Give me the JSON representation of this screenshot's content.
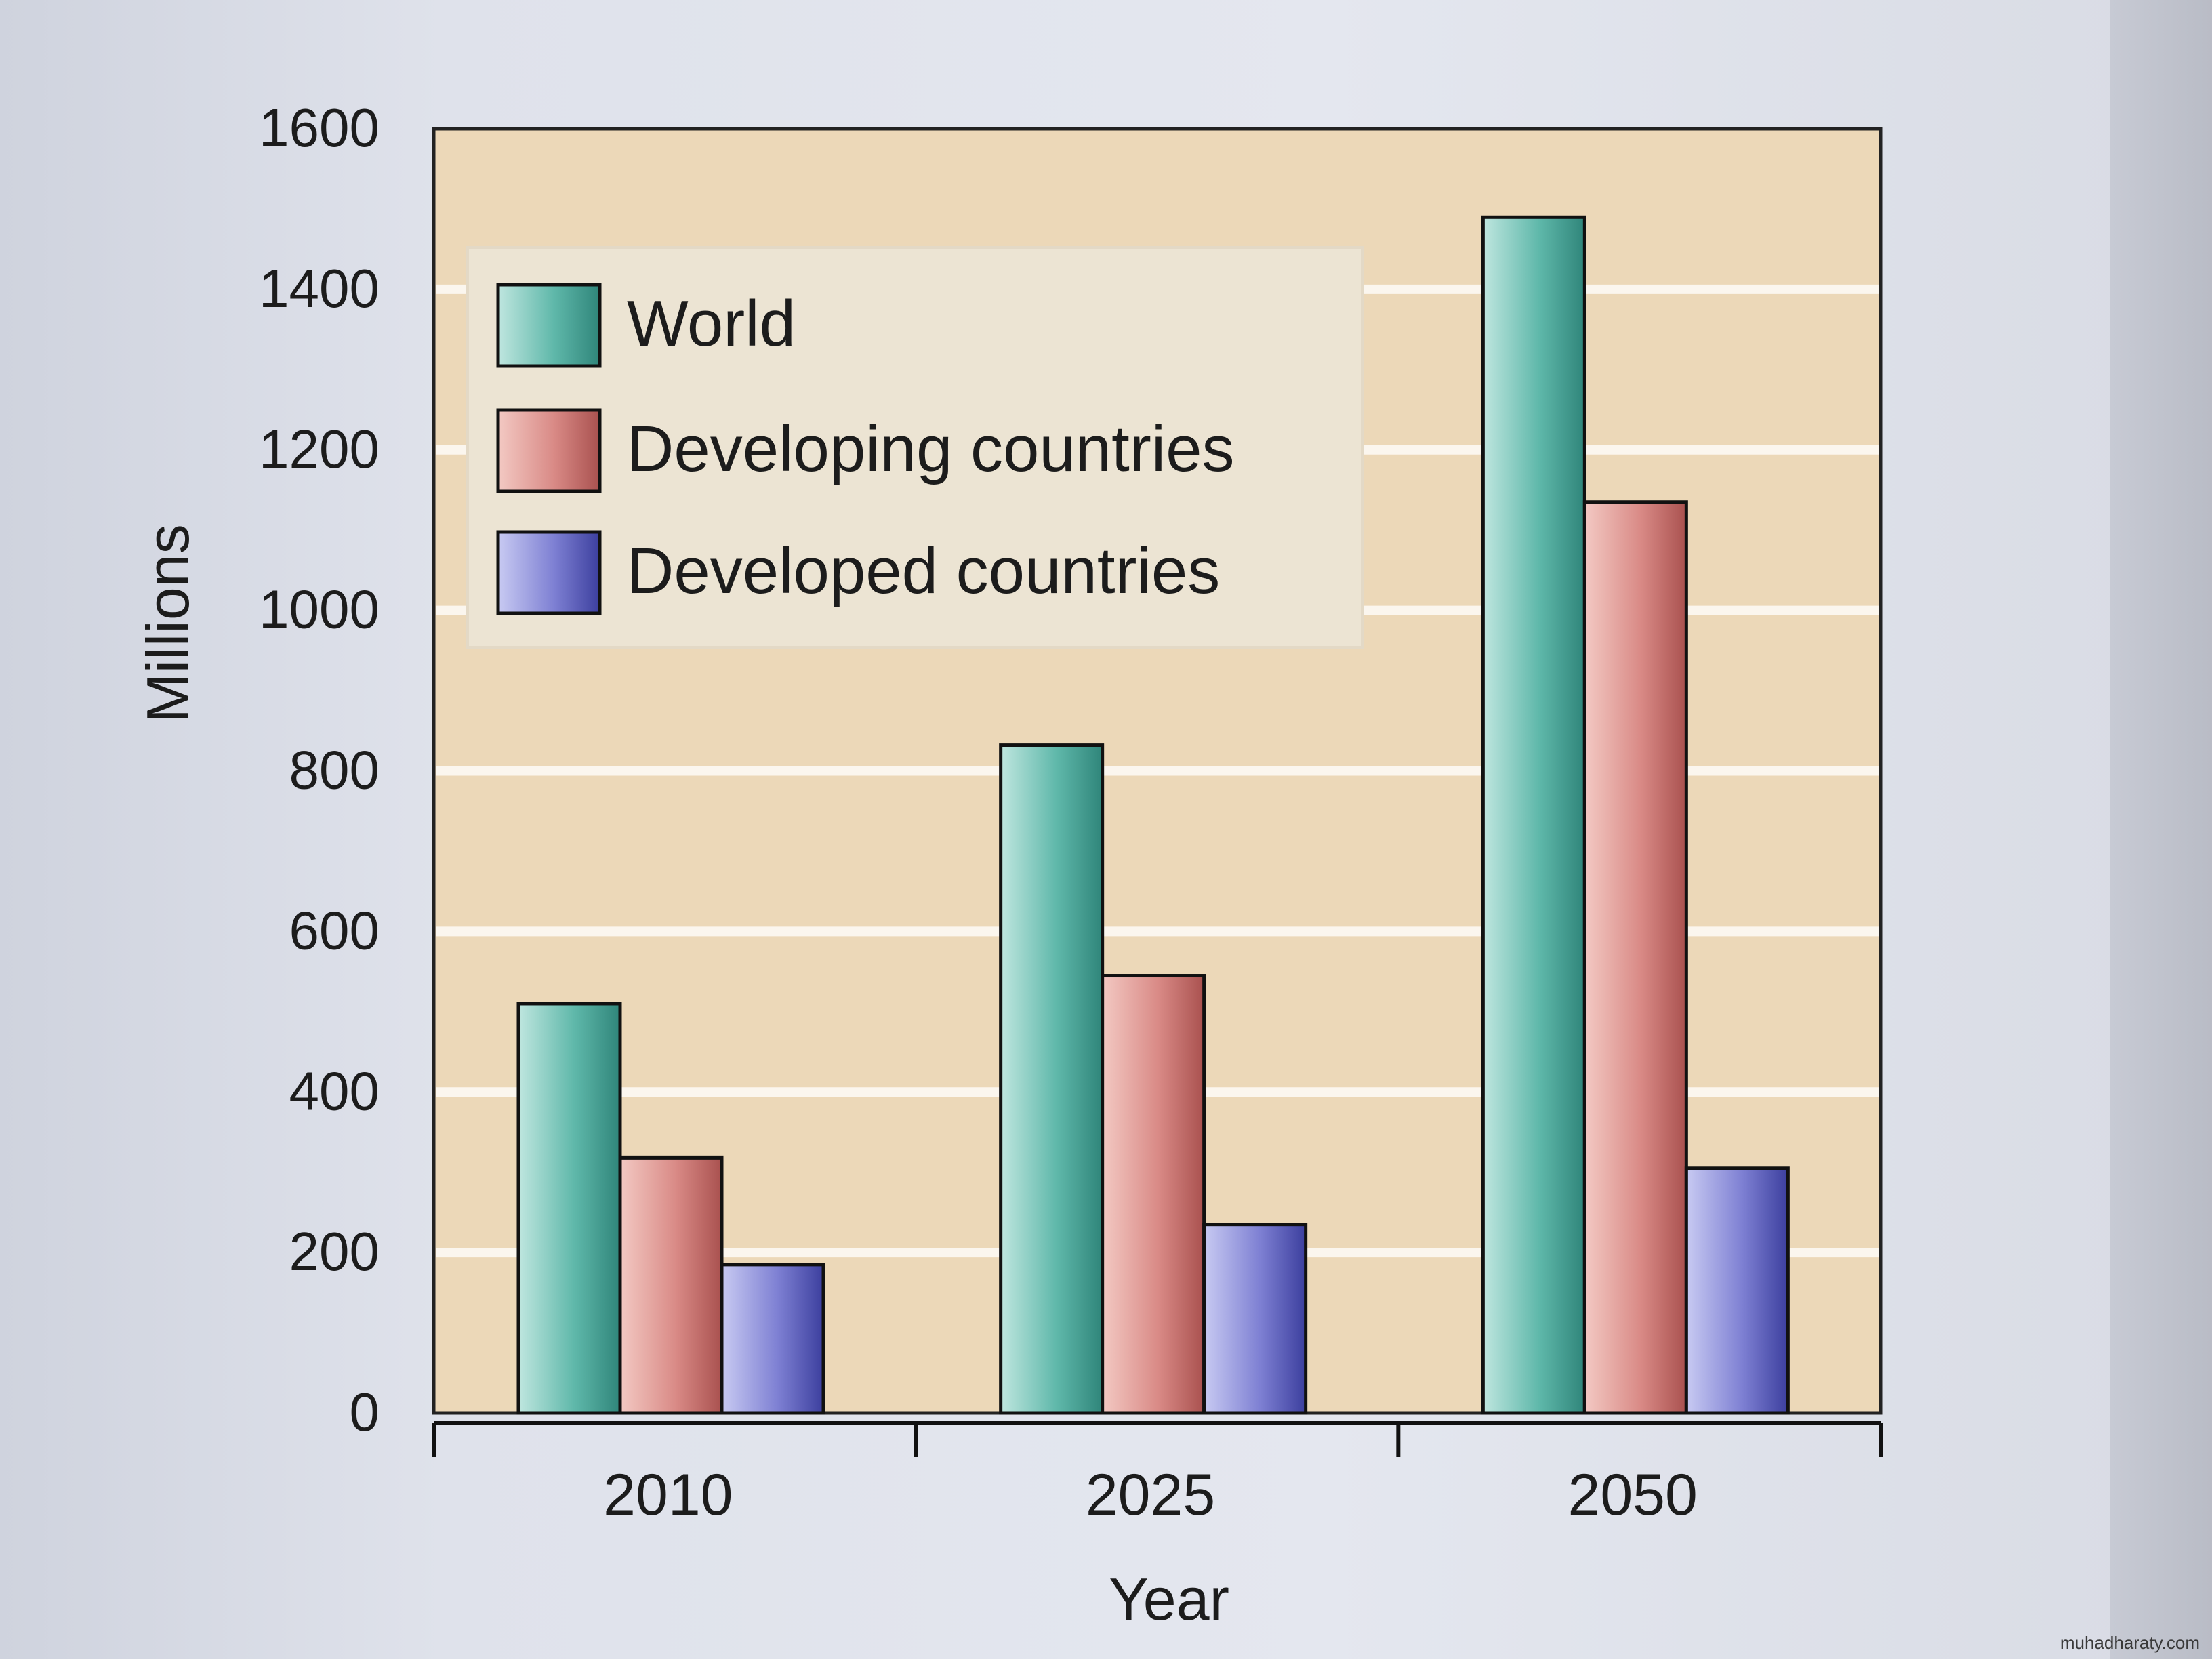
{
  "chart_data": {
    "type": "bar",
    "title": "",
    "xlabel": "Year",
    "ylabel": "Millions",
    "categories": [
      "2010",
      "2025",
      "2050"
    ],
    "series": [
      {
        "name": "World",
        "values": [
          510,
          832,
          1490
        ]
      },
      {
        "name": "Developing countries",
        "values": [
          318,
          545,
          1135
        ]
      },
      {
        "name": "Developed countries",
        "values": [
          185,
          235,
          305
        ]
      }
    ],
    "ylim": [
      0,
      1600
    ],
    "yticks": [
      "0",
      "200",
      "400",
      "600",
      "800",
      "1000",
      "1200",
      "1400",
      "1600"
    ],
    "grid": true,
    "legend": "top-left",
    "colors": {
      "World": "#5fb8aa",
      "Developing countries": "#d98a86",
      "Developed countries": "#7e80d3",
      "plot_background": "#ecd8b8",
      "grid": "#fbf6ee"
    }
  },
  "footer": {
    "watermark": "muhadharaty.com"
  }
}
